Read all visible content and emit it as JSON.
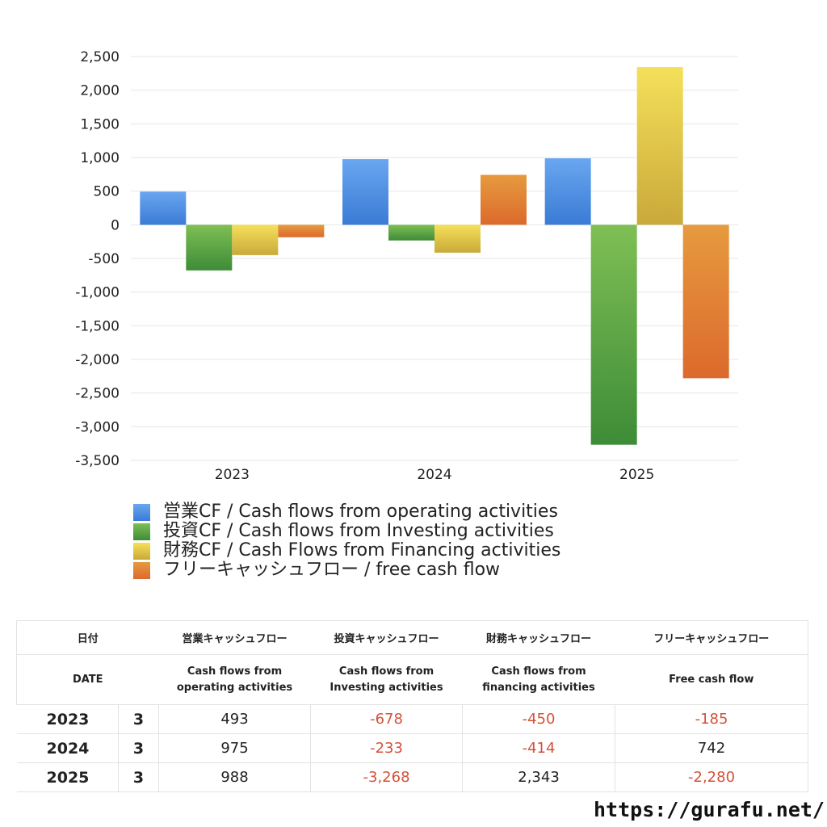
{
  "chart_data": {
    "type": "bar",
    "categories": [
      "2023",
      "2024",
      "2025"
    ],
    "series": [
      {
        "name": "営業CF / Cash flows from operating activities",
        "values": [
          493,
          975,
          988
        ],
        "color": "#3a7bd5",
        "color_light": "#6aa6f0"
      },
      {
        "name": "投資CF / Cash flows from Investing activities",
        "values": [
          -678,
          -233,
          -3268
        ],
        "color": "#3d8c37",
        "color_light": "#7fbf55"
      },
      {
        "name": "財務CF / Cash Flows from Financing activities",
        "values": [
          -450,
          -414,
          2343
        ],
        "color": "#c9a93a",
        "color_light": "#f5e05a"
      },
      {
        "name": "フリーキャッシュフロー / free cash flow",
        "values": [
          -185,
          742,
          -2280
        ],
        "color": "#dc6a2c",
        "color_light": "#e69a3f"
      }
    ],
    "ylim": [
      -3500,
      2500
    ],
    "yticks": [
      2500,
      2000,
      1500,
      1000,
      500,
      0,
      -500,
      -1000,
      -1500,
      -2000,
      -2500,
      -3000,
      -3500
    ],
    "ytick_labels": [
      "2,500",
      "2,000",
      "1,500",
      "1,000",
      "500",
      "0",
      "-500",
      "-1,000",
      "-1,500",
      "-2,000",
      "-2,500",
      "-3,000",
      "-3,500"
    ],
    "grid": true,
    "legend": "bottom"
  },
  "table": {
    "header1": [
      "日付",
      "",
      "営業キャッシュフロー",
      "投資キャッシュフロー",
      "財務キャッシュフロー",
      "フリーキャッシュフロー"
    ],
    "header2": [
      "DATE",
      "",
      "Cash flows from operating activities",
      "Cash flows from Investing activities",
      "Cash flows from financing activities",
      "Free cash flow"
    ],
    "rows": [
      {
        "year": "2023",
        "month": "3",
        "cells": [
          {
            "text": "493",
            "neg": false
          },
          {
            "text": "-678",
            "neg": true
          },
          {
            "text": "-450",
            "neg": true
          },
          {
            "text": "-185",
            "neg": true
          }
        ]
      },
      {
        "year": "2024",
        "month": "3",
        "cells": [
          {
            "text": "975",
            "neg": false
          },
          {
            "text": "-233",
            "neg": true
          },
          {
            "text": "-414",
            "neg": true
          },
          {
            "text": "742",
            "neg": false
          }
        ]
      },
      {
        "year": "2025",
        "month": "3",
        "cells": [
          {
            "text": "988",
            "neg": false
          },
          {
            "text": "-3,268",
            "neg": true
          },
          {
            "text": "2,343",
            "neg": false
          },
          {
            "text": "-2,280",
            "neg": true
          }
        ]
      }
    ]
  },
  "footer": {
    "url": "https://gurafu.net/"
  }
}
